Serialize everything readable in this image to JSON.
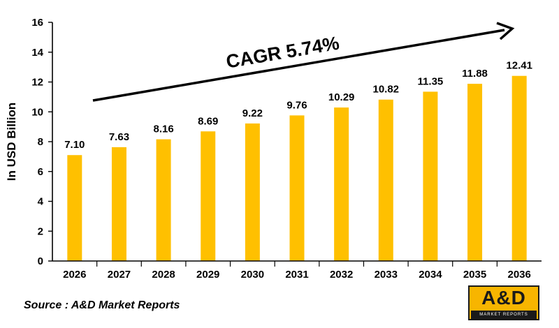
{
  "chart_data": {
    "type": "bar",
    "categories": [
      "2026",
      "2027",
      "2028",
      "2029",
      "2030",
      "2031",
      "2032",
      "2033",
      "2034",
      "2035",
      "2036"
    ],
    "values": [
      7.1,
      7.63,
      8.16,
      8.69,
      9.22,
      9.76,
      10.29,
      10.82,
      11.35,
      11.88,
      12.41
    ],
    "value_labels": [
      "7.10",
      "7.63",
      "8.16",
      "8.69",
      "9.22",
      "9.76",
      "10.29",
      "10.82",
      "11.35",
      "11.88",
      "12.41"
    ],
    "ylabel": "In USD Billion",
    "ylim": [
      0,
      16
    ],
    "yticks": [
      0,
      2,
      4,
      6,
      8,
      10,
      12,
      14,
      16
    ],
    "grid": false,
    "bar_color": "#ffc000",
    "annotation": "CAGR 5.74%"
  },
  "source_text": "Source : A&D Market Reports",
  "logo": {
    "main": "A&D",
    "sub": "MARKET REPORTS",
    "bg_color": "#f7b500",
    "text_color": "#1a1a1a"
  }
}
